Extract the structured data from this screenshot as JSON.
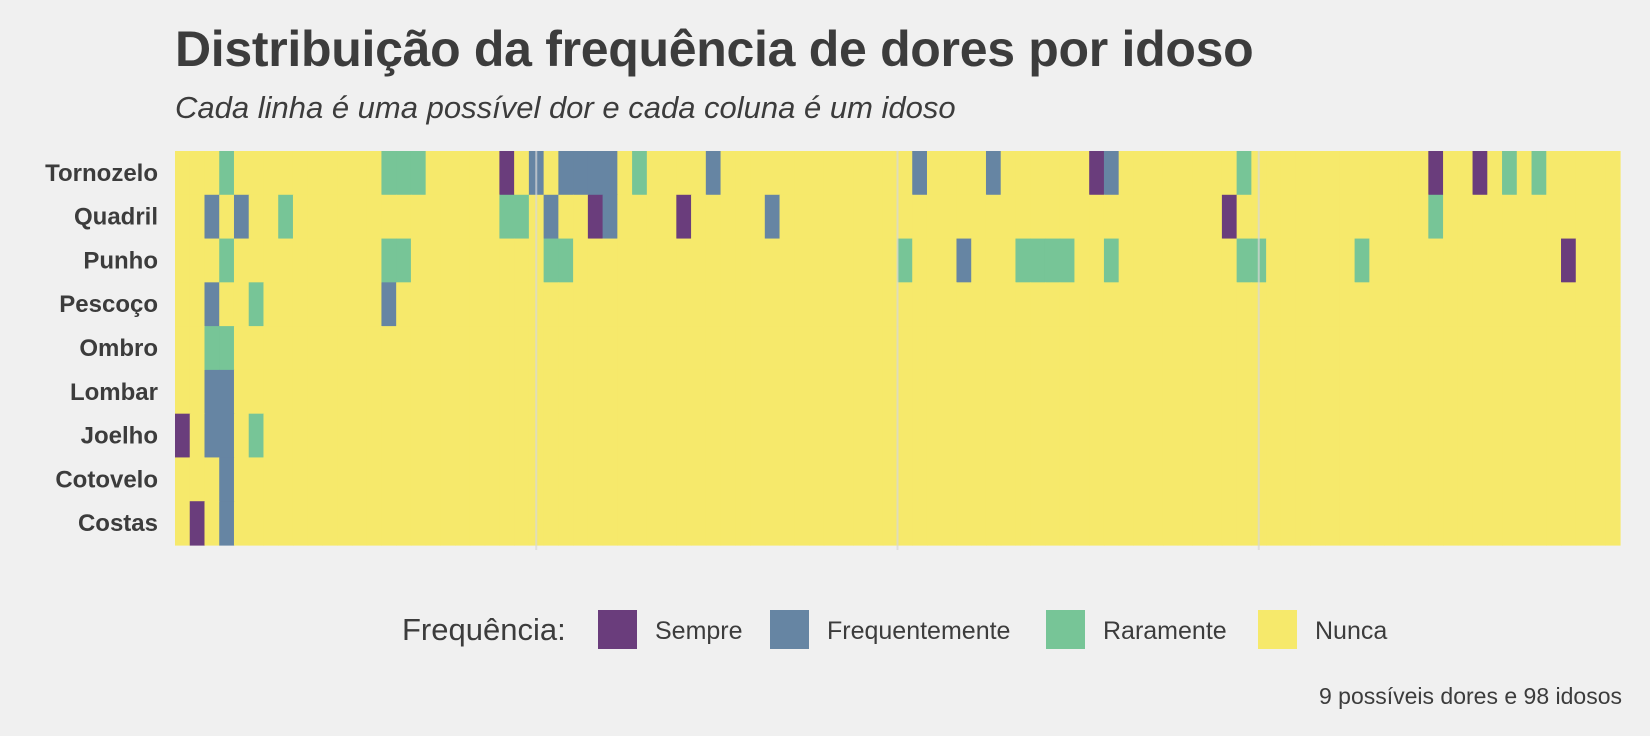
{
  "chart_data": {
    "type": "heatmap",
    "title": "Distribuição da frequência de dores por idoso",
    "subtitle": "Cada linha é uma possível dor e cada coluna é um idoso",
    "caption": "9 possíveis dores e 98 idosos",
    "legend": {
      "title": "Frequência:",
      "placement": "bottom",
      "items": [
        {
          "label": "Sempre",
          "color": "#6a3d7c"
        },
        {
          "label": "Frequentemente",
          "color": "#6685a3"
        },
        {
          "label": "Raramente",
          "color": "#77c597"
        },
        {
          "label": "Nunca",
          "color": "#f6e96b"
        }
      ]
    },
    "rows": [
      "Tornozelo",
      "Quadril",
      "Punho",
      "Pescoço",
      "Ombro",
      "Lombar",
      "Joelho",
      "Cotovelo",
      "Costas"
    ],
    "n_columns": 98,
    "grid": true,
    "value_codes": {
      "0": "Nunca",
      "1": "Raramente",
      "2": "Frequentemente",
      "3": "Sempre"
    },
    "matrix": [
      "00010000000000111000003020222201000020000000000000200002000000320000000010000000000003003010100000",
      "00202001000000000000001102003200003000002000000000000000000000000000000300000000000001000000000000",
      "00010000000000110000000001100000000000000000000001000200011110010000000011000000100000000000003000",
      "00200100000000200000000000000000000000000000000000000000000000000000000000000000000000000000000000",
      "00110000000000000000000000000000000000000000000000000000000000000000000000000000000000000000000000",
      "00220000000000000000000000000000000000000000000000000000000000000000000000000000000000000000000000",
      "30220100000000000000000000000000000000000000000000000000000000000000000000000000000000000000000000",
      "00020000000000000000000000000000000000000000000000000000000000000000000000000000000000000000000000",
      "03020000000000000000000000000000000000000000000000000000000000000000000000000000000000000000000000"
    ]
  }
}
